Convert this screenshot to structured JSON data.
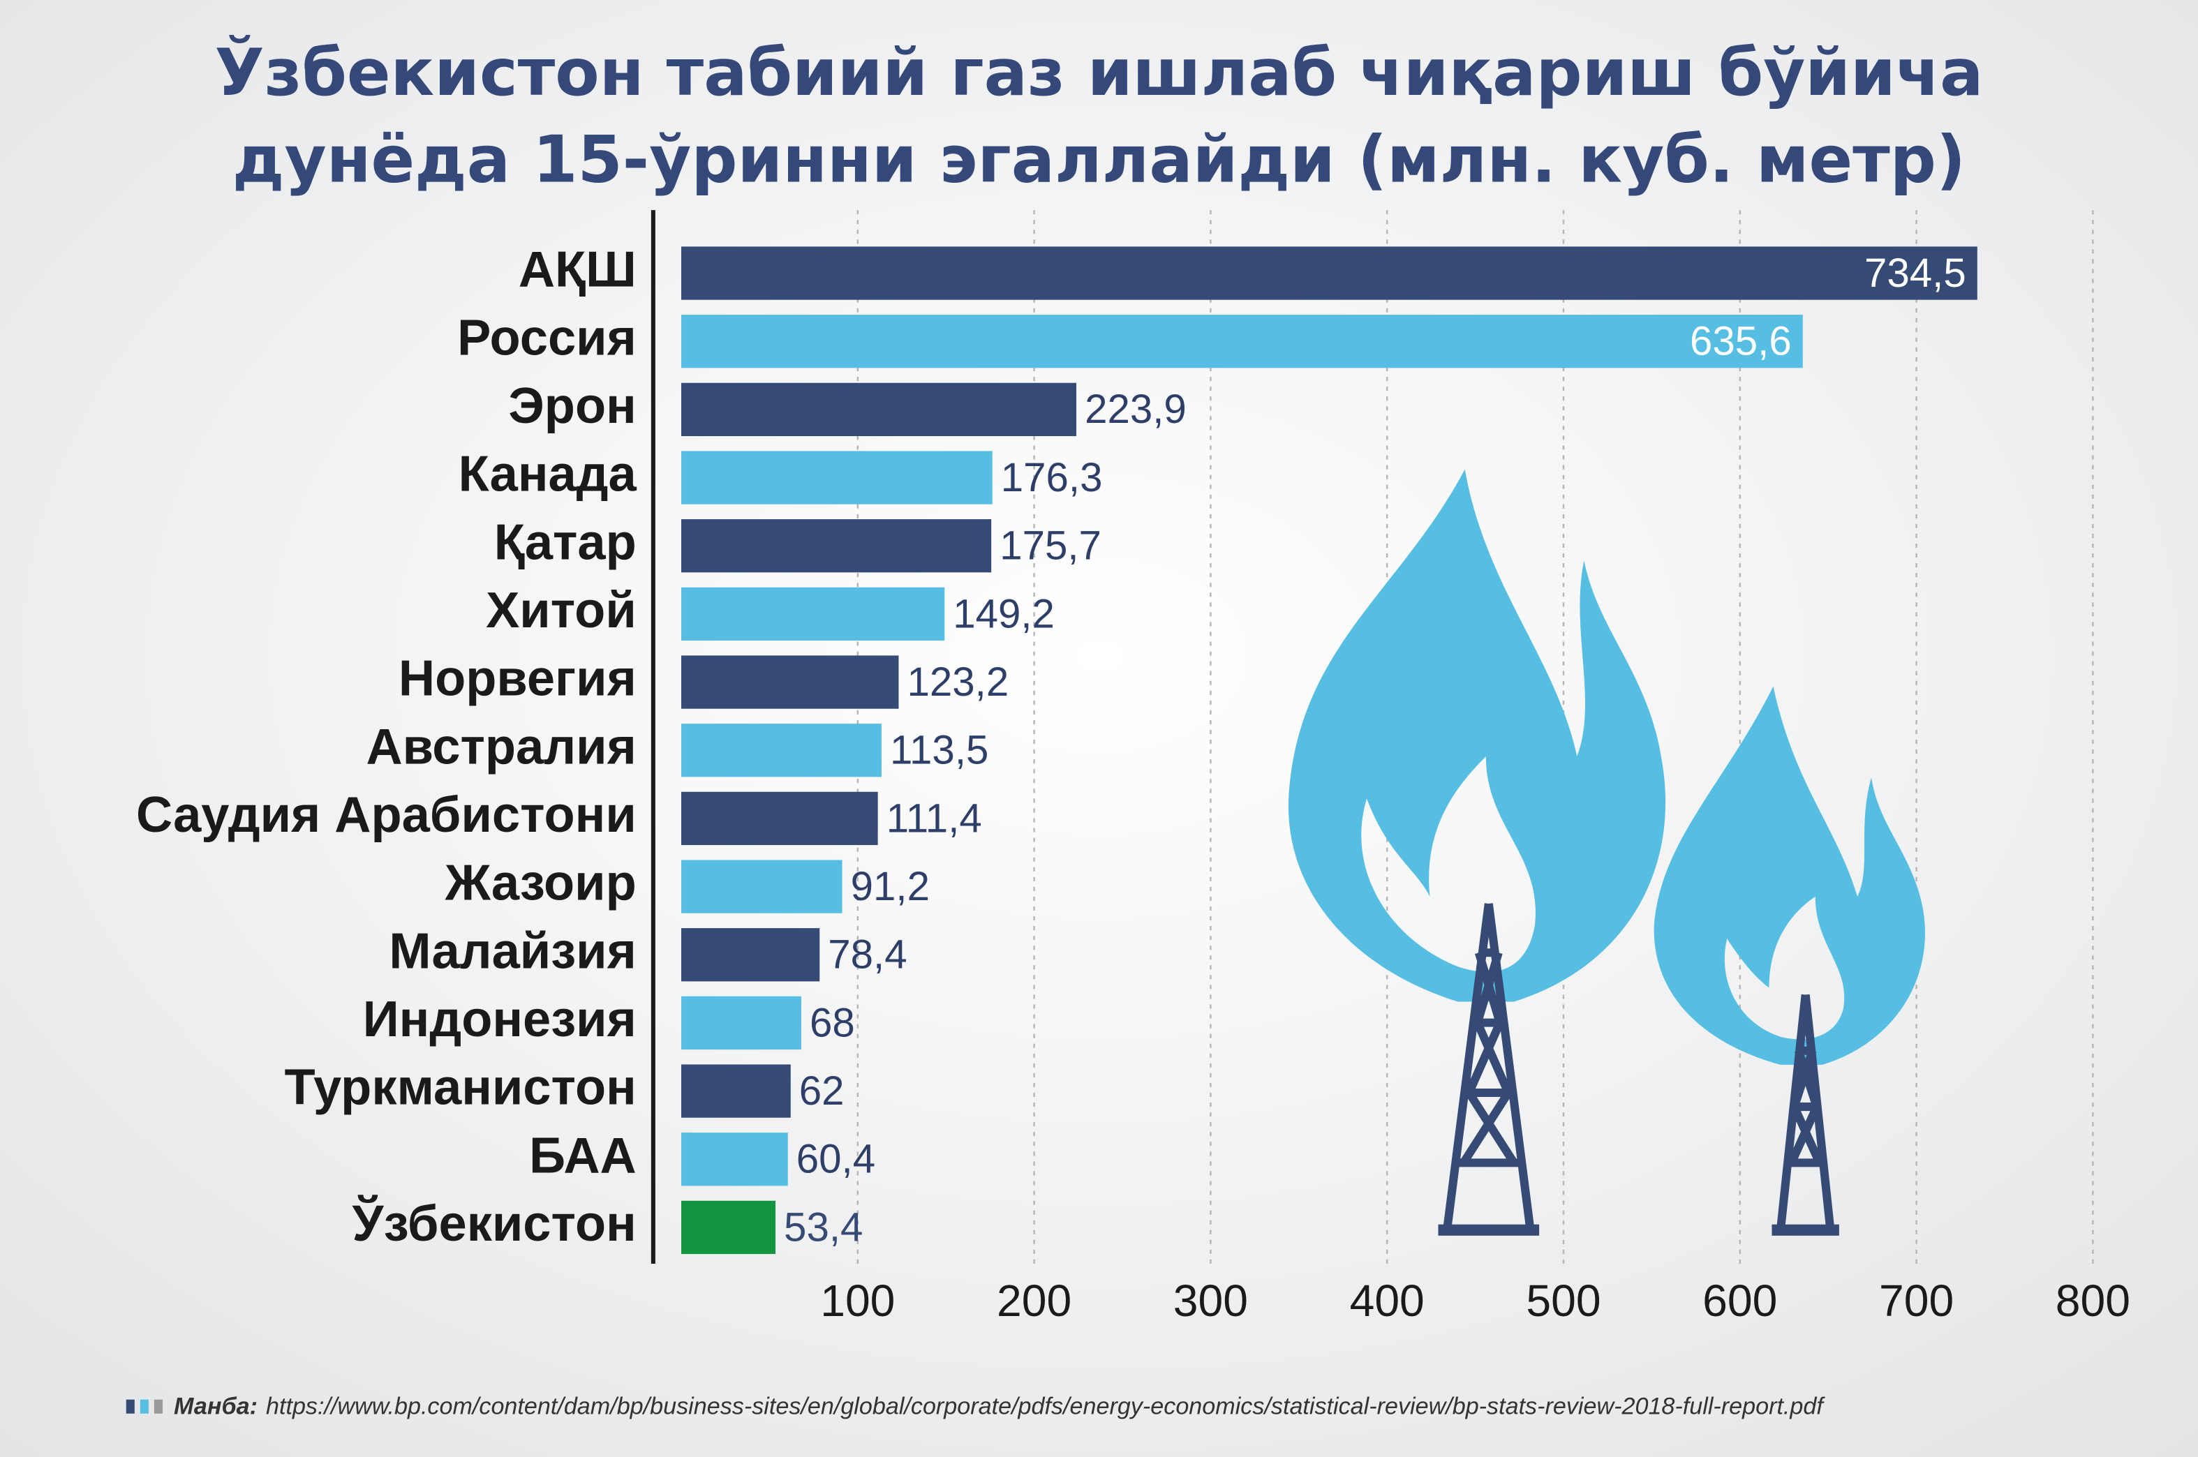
{
  "chart_data": {
    "type": "bar",
    "orientation": "horizontal",
    "title": [
      "Ўзбекистон табиий газ ишлаб чиқариш бўйича",
      "дунёда 15-ўринни эгаллайди (млн. куб. метр)"
    ],
    "categories": [
      "АҚШ",
      "Россия",
      "Эрон",
      "Канада",
      "Қатар",
      "Хитой",
      "Норвегия",
      "Австралия",
      "Саудия Арабистони",
      "Жазоир",
      "Малайзия",
      "Индонезия",
      "Туркманистон",
      "БАА",
      "Ўзбекистон"
    ],
    "values": [
      734.5,
      635.6,
      223.9,
      176.3,
      175.7,
      149.2,
      123.2,
      113.5,
      111.4,
      91.2,
      78.4,
      68,
      62,
      60.4,
      53.4
    ],
    "value_labels": [
      "734,5",
      "635,6",
      "223,9",
      "176,3",
      "175,7",
      "149,2",
      "123,2",
      "113,5",
      "111,4",
      "91,2",
      "78,4",
      "68",
      "62",
      "60,4",
      "53,4"
    ],
    "colors": [
      "#354a75",
      "#56bde3",
      "#354a75",
      "#56bde3",
      "#354a75",
      "#56bde3",
      "#354a75",
      "#56bde3",
      "#354a75",
      "#56bde3",
      "#354a75",
      "#56bde3",
      "#354a75",
      "#56bde3",
      "#13943f"
    ],
    "xlim": [
      0,
      800
    ],
    "xticks": [
      100,
      200,
      300,
      400,
      500,
      600,
      700,
      800
    ],
    "grid": true,
    "source_label": "Манба:",
    "source": "https://www.bp.com/content/dam/bp/business-sites/en/global/corporate/pdfs/energy-economics/statistical-review/bp-stats-review-2018-full-report.pdf"
  }
}
